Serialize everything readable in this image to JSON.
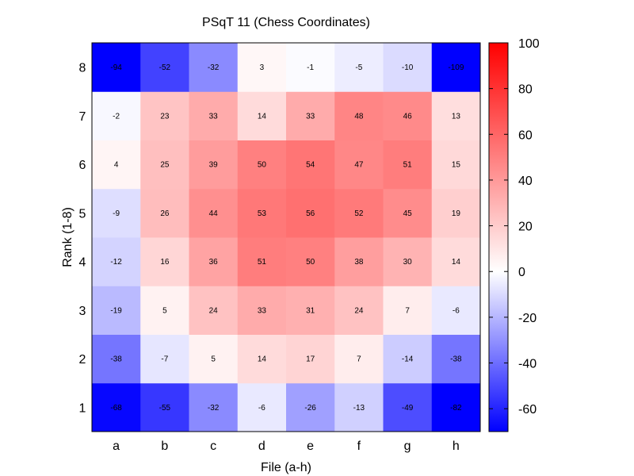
{
  "chart_data": {
    "type": "heatmap",
    "title": "PSqT 11 (Chess Coordinates)",
    "xlabel": "File (a-h)",
    "ylabel": "Rank (1-8)",
    "x_categories": [
      "a",
      "b",
      "c",
      "d",
      "e",
      "f",
      "g",
      "h"
    ],
    "y_categories": [
      "1",
      "2",
      "3",
      "4",
      "5",
      "6",
      "7",
      "8"
    ],
    "values": [
      [
        -68,
        -55,
        -32,
        -6,
        -26,
        -13,
        -49,
        -82
      ],
      [
        -38,
        -7,
        5,
        14,
        17,
        7,
        -14,
        -38
      ],
      [
        -19,
        5,
        24,
        33,
        31,
        24,
        7,
        -6
      ],
      [
        -12,
        16,
        36,
        51,
        50,
        38,
        30,
        14
      ],
      [
        -9,
        26,
        44,
        53,
        56,
        52,
        45,
        19
      ],
      [
        4,
        25,
        39,
        50,
        54,
        47,
        51,
        15
      ],
      [
        -2,
        23,
        33,
        14,
        33,
        48,
        46,
        13
      ],
      [
        -94,
        -52,
        -32,
        3,
        -1,
        -5,
        -10,
        -109
      ]
    ],
    "colorbar": {
      "range": [
        -70,
        100
      ],
      "ticks": [
        "100",
        "80",
        "60",
        "40",
        "20",
        "0",
        "-20",
        "-40",
        "-60"
      ],
      "low_color": "#0000ff",
      "mid_color": "#ffffff",
      "high_color": "#ff0000"
    }
  }
}
